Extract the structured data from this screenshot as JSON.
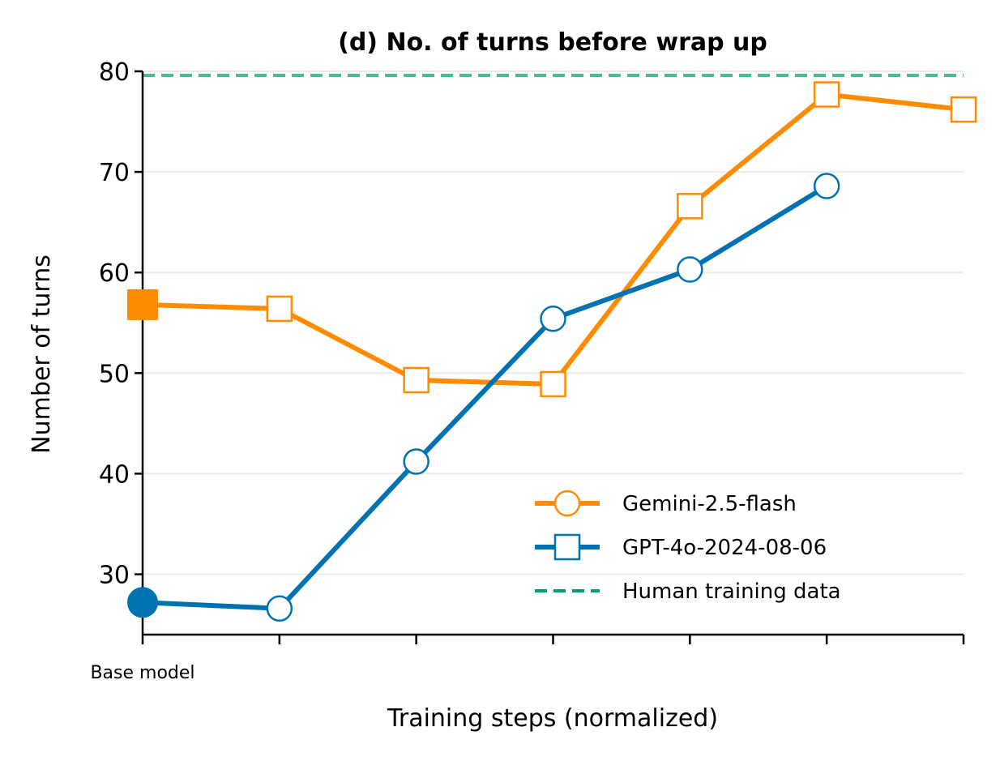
{
  "chart_data": {
    "type": "line",
    "title": "(d) No. of turns before wrap up",
    "xlabel": "Training steps (normalized)",
    "ylabel": "Number of turns",
    "x_tick_labels": [
      "Base model",
      "",
      "",
      "",
      "",
      "",
      ""
    ],
    "x": [
      0,
      1,
      2,
      3,
      4,
      5,
      6
    ],
    "xlim": [
      0,
      6
    ],
    "ylim": [
      24,
      80
    ],
    "yticks": [
      30,
      40,
      50,
      60,
      70,
      80
    ],
    "grid": "horizontal",
    "legend_position": "lower-right",
    "series": [
      {
        "name": "Gemini-2.5-flash",
        "color": "#FF8C00",
        "x": [
          0,
          1,
          2,
          3,
          4,
          5,
          6
        ],
        "values": [
          56.8,
          56.4,
          49.3,
          48.9,
          66.6,
          77.7,
          76.2
        ],
        "point_marker": "square",
        "legend_marker": "circle"
      },
      {
        "name": "GPT-4o-2024-08-06",
        "color": "#0072B2",
        "x": [
          0,
          1,
          2,
          3,
          4,
          5
        ],
        "values": [
          27.2,
          26.6,
          41.2,
          55.4,
          60.3,
          68.6
        ],
        "point_marker": "circle",
        "legend_marker": "square"
      }
    ],
    "reference_lines": [
      {
        "name": "Human training data",
        "value": 79.6,
        "color": "#4DB896",
        "legend_color": "#009E73",
        "style": "dashed"
      }
    ]
  }
}
